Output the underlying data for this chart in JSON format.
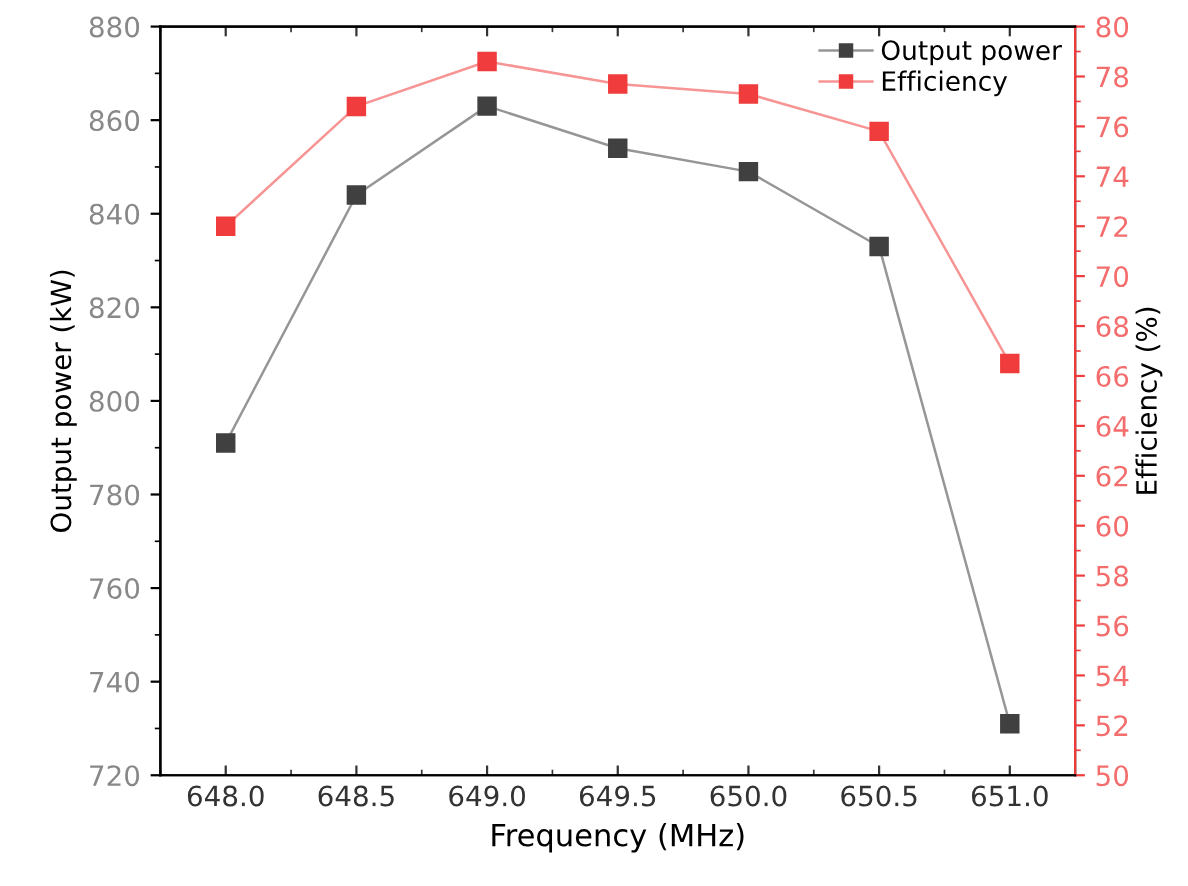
{
  "chart_data": {
    "type": "line",
    "xlabel": "Frequency (MHz)",
    "ylabel": "Output power (kW)",
    "y2label": "Efficiency (%)",
    "x": [
      648.0,
      648.5,
      649.0,
      649.5,
      650.0,
      650.5,
      651.0
    ],
    "series": [
      {
        "name": "Output power",
        "color": "#404040",
        "values": [
          791,
          844,
          863,
          854,
          849,
          833,
          731
        ]
      },
      {
        "name": "Efficiency",
        "color": "#f03c3c",
        "axis": "y2",
        "values": [
          72.0,
          76.8,
          78.6,
          77.7,
          77.3,
          75.8,
          66.5
        ]
      }
    ],
    "xlim": [
      647.75,
      651.25
    ],
    "xticks": [
      {
        "value": 648.0,
        "label": "648.0"
      },
      {
        "value": 648.5,
        "label": "648.5"
      },
      {
        "value": 649.0,
        "label": "649.0"
      },
      {
        "value": 649.5,
        "label": "649.5"
      },
      {
        "value": 650.0,
        "label": "650.0"
      },
      {
        "value": 650.5,
        "label": "650.5"
      },
      {
        "value": 651.0,
        "label": "651.0"
      }
    ],
    "ylim": [
      720,
      880
    ],
    "yticks": [
      720,
      740,
      760,
      780,
      800,
      820,
      840,
      860,
      880
    ],
    "y2lim": [
      50,
      80
    ],
    "y2ticks": [
      50,
      52,
      54,
      56,
      58,
      60,
      62,
      64,
      66,
      68,
      70,
      72,
      74,
      76,
      78,
      80
    ],
    "marker": "square",
    "line_style": "solid",
    "grid": false,
    "legend": "top right"
  }
}
